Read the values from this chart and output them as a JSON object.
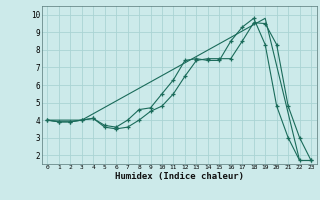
{
  "xlabel": "Humidex (Indice chaleur)",
  "bg_color": "#cceaea",
  "grid_color": "#aad4d4",
  "line_color": "#1a6b5a",
  "xlim": [
    -0.5,
    23.5
  ],
  "ylim": [
    1.5,
    10.5
  ],
  "xticks": [
    0,
    1,
    2,
    3,
    4,
    5,
    6,
    7,
    8,
    9,
    10,
    11,
    12,
    13,
    14,
    15,
    16,
    17,
    18,
    19,
    20,
    21,
    22,
    23
  ],
  "yticks": [
    2,
    3,
    4,
    5,
    6,
    7,
    8,
    9,
    10
  ],
  "line1_x": [
    0,
    1,
    2,
    3,
    4,
    5,
    6,
    7,
    8,
    9,
    10,
    11,
    12,
    13,
    14,
    15,
    16,
    17,
    18,
    19,
    20,
    21,
    22,
    23
  ],
  "line1_y": [
    4.0,
    3.9,
    3.9,
    4.0,
    4.1,
    3.6,
    3.5,
    3.6,
    4.0,
    4.5,
    4.8,
    5.5,
    6.5,
    7.4,
    7.5,
    7.5,
    7.5,
    8.5,
    9.55,
    9.5,
    8.3,
    4.8,
    3.0,
    1.7
  ],
  "line2_x": [
    0,
    1,
    2,
    3,
    4,
    5,
    6,
    7,
    8,
    9,
    10,
    11,
    12,
    13,
    14,
    15,
    16,
    17,
    18,
    19,
    20,
    21,
    22,
    23
  ],
  "line2_y": [
    4.0,
    3.9,
    3.9,
    4.0,
    4.1,
    3.7,
    3.6,
    4.0,
    4.6,
    4.7,
    5.5,
    6.3,
    7.4,
    7.5,
    7.4,
    7.4,
    8.5,
    9.3,
    9.8,
    8.3,
    4.8,
    3.0,
    1.7,
    1.7
  ],
  "line3_x": [
    0,
    3,
    19,
    22,
    23
  ],
  "line3_y": [
    4.0,
    4.0,
    9.8,
    1.7,
    1.7
  ]
}
